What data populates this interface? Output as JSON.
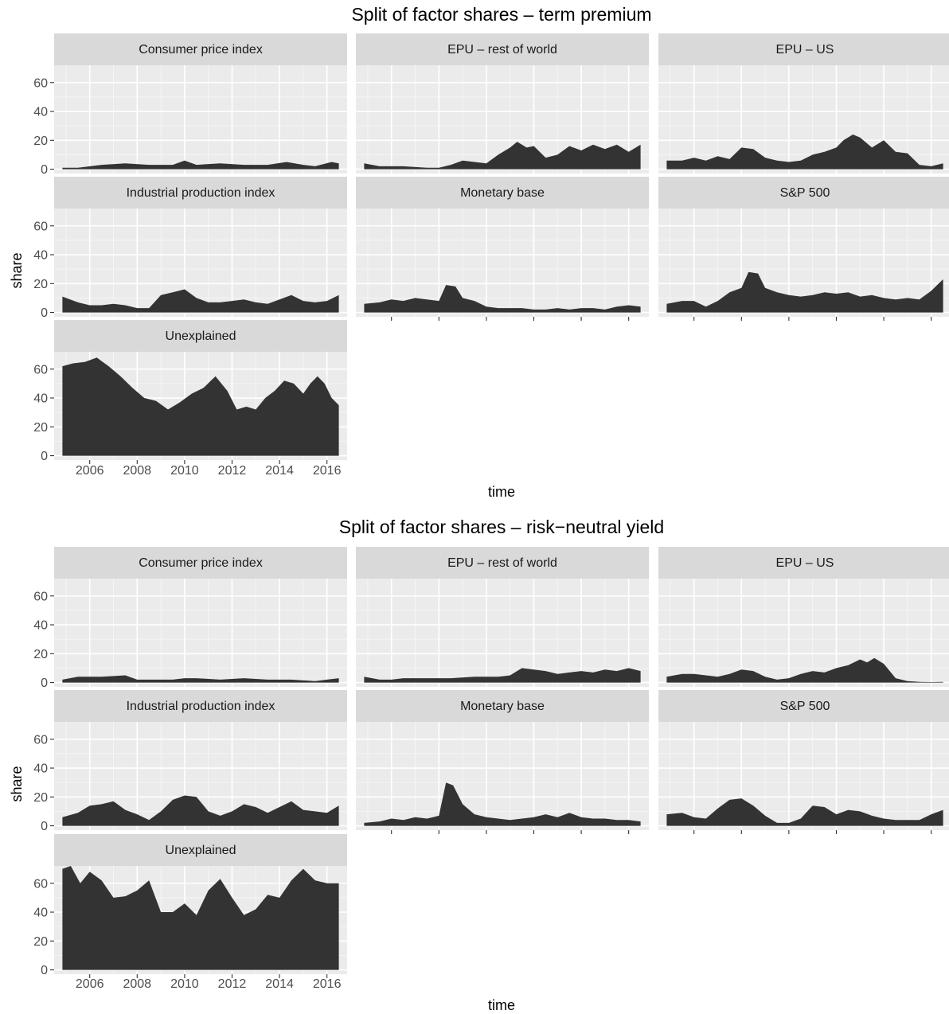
{
  "chart_data": [
    {
      "type": "area",
      "title": "Split of factor shares – term premium",
      "xlabel": "time",
      "ylabel": "share",
      "xlim": [
        2004.5,
        2016.85
      ],
      "ylim": [
        -3,
        72
      ],
      "x_ticks": [
        2006,
        2008,
        2010,
        2012,
        2014,
        2016
      ],
      "y_ticks": [
        0,
        20,
        40,
        60
      ],
      "panels": [
        {
          "name": "Consumer price index",
          "x": [
            2004.85,
            2005.5,
            2006.5,
            2007.5,
            2008.5,
            2009.5,
            2010.0,
            2010.5,
            2011.5,
            2012.5,
            2013.5,
            2014.3,
            2015.0,
            2015.5,
            2016.2,
            2016.5
          ],
          "values": [
            1,
            1,
            3,
            4,
            3,
            3,
            6,
            3,
            4,
            3,
            3,
            5,
            3,
            2,
            5,
            4
          ]
        },
        {
          "name": "EPU – rest of world",
          "x": [
            2004.85,
            2005.5,
            2006.5,
            2007.5,
            2008.0,
            2008.5,
            2009.0,
            2009.5,
            2010.0,
            2010.5,
            2011.0,
            2011.3,
            2011.7,
            2012.0,
            2012.5,
            2013.0,
            2013.5,
            2014.0,
            2014.5,
            2015.0,
            2015.5,
            2016.0,
            2016.5
          ],
          "values": [
            4,
            2,
            2,
            1,
            1,
            3,
            6,
            5,
            4,
            10,
            15,
            19,
            15,
            16,
            8,
            10,
            16,
            13,
            17,
            14,
            17,
            12,
            17
          ]
        },
        {
          "name": "EPU – US",
          "x": [
            2004.85,
            2005.5,
            2006.0,
            2006.5,
            2007.0,
            2007.5,
            2008.0,
            2008.5,
            2009.0,
            2009.5,
            2010.0,
            2010.5,
            2011.0,
            2011.5,
            2012.0,
            2012.3,
            2012.7,
            2013.0,
            2013.5,
            2014.0,
            2014.5,
            2015.0,
            2015.5,
            2016.0,
            2016.5
          ],
          "values": [
            6,
            6,
            8,
            6,
            9,
            7,
            15,
            14,
            8,
            6,
            5,
            6,
            10,
            12,
            15,
            20,
            24,
            22,
            15,
            20,
            12,
            11,
            3,
            2,
            4
          ]
        },
        {
          "name": "Industrial production index",
          "x": [
            2004.85,
            2005.5,
            2006.0,
            2006.5,
            2007.0,
            2007.5,
            2008.0,
            2008.5,
            2009.0,
            2009.5,
            2010.0,
            2010.5,
            2011.0,
            2011.5,
            2012.0,
            2012.5,
            2013.0,
            2013.5,
            2014.0,
            2014.5,
            2015.0,
            2015.5,
            2016.0,
            2016.5
          ],
          "values": [
            11,
            7,
            5,
            5,
            6,
            5,
            3,
            3,
            12,
            14,
            16,
            10,
            7,
            7,
            8,
            9,
            7,
            6,
            9,
            12,
            8,
            7,
            8,
            12
          ]
        },
        {
          "name": "Monetary base",
          "x": [
            2004.85,
            2005.5,
            2006.0,
            2006.5,
            2007.0,
            2007.5,
            2008.0,
            2008.3,
            2008.7,
            2009.0,
            2009.5,
            2010.0,
            2010.5,
            2011.0,
            2011.5,
            2012.0,
            2012.5,
            2013.0,
            2013.5,
            2014.0,
            2014.5,
            2015.0,
            2015.5,
            2016.0,
            2016.5
          ],
          "values": [
            6,
            7,
            9,
            8,
            10,
            9,
            8,
            19,
            18,
            10,
            8,
            4,
            3,
            3,
            3,
            2,
            2,
            3,
            2,
            3,
            3,
            2,
            4,
            5,
            4
          ]
        },
        {
          "name": "S&P 500",
          "x": [
            2004.85,
            2005.5,
            2006.0,
            2006.5,
            2007.0,
            2007.5,
            2008.0,
            2008.3,
            2008.7,
            2009.0,
            2009.5,
            2010.0,
            2010.5,
            2011.0,
            2011.5,
            2012.0,
            2012.5,
            2013.0,
            2013.5,
            2014.0,
            2014.5,
            2015.0,
            2015.5,
            2016.0,
            2016.5
          ],
          "values": [
            6,
            8,
            8,
            4,
            8,
            14,
            17,
            28,
            27,
            17,
            14,
            12,
            11,
            12,
            14,
            13,
            14,
            11,
            12,
            10,
            9,
            10,
            9,
            15,
            23
          ]
        },
        {
          "name": "Unexplained",
          "x": [
            2004.85,
            2005.3,
            2005.8,
            2006.3,
            2006.8,
            2007.3,
            2007.8,
            2008.3,
            2008.8,
            2009.3,
            2009.8,
            2010.3,
            2010.8,
            2011.3,
            2011.8,
            2012.2,
            2012.6,
            2013.0,
            2013.4,
            2013.8,
            2014.2,
            2014.6,
            2015.0,
            2015.3,
            2015.6,
            2015.9,
            2016.2,
            2016.5
          ],
          "values": [
            62,
            64,
            65,
            68,
            62,
            55,
            47,
            40,
            38,
            32,
            37,
            43,
            47,
            55,
            45,
            32,
            34,
            32,
            40,
            45,
            52,
            50,
            43,
            50,
            55,
            50,
            40,
            35
          ]
        }
      ]
    },
    {
      "type": "area",
      "title": "Split of factor shares – risk−neutral yield",
      "xlabel": "time",
      "ylabel": "share",
      "xlim": [
        2004.5,
        2016.85
      ],
      "ylim": [
        -3,
        72
      ],
      "x_ticks": [
        2006,
        2008,
        2010,
        2012,
        2014,
        2016
      ],
      "y_ticks": [
        0,
        20,
        40,
        60
      ],
      "panels": [
        {
          "name": "Consumer price index",
          "x": [
            2004.85,
            2005.5,
            2006.5,
            2007.5,
            2008.0,
            2008.5,
            2009.5,
            2010.0,
            2010.5,
            2011.5,
            2012.5,
            2013.5,
            2014.5,
            2015.5,
            2016.0,
            2016.5
          ],
          "values": [
            2,
            4,
            4,
            5,
            2,
            2,
            2,
            3,
            3,
            2,
            3,
            2,
            2,
            1,
            2,
            3
          ]
        },
        {
          "name": "EPU – rest of world",
          "x": [
            2004.85,
            2005.5,
            2006.0,
            2006.5,
            2007.5,
            2008.5,
            2009.5,
            2010.0,
            2010.5,
            2011.0,
            2011.5,
            2012.0,
            2012.5,
            2013.0,
            2013.5,
            2014.0,
            2014.5,
            2015.0,
            2015.5,
            2016.0,
            2016.5
          ],
          "values": [
            4,
            2,
            2,
            3,
            3,
            3,
            4,
            4,
            4,
            5,
            10,
            9,
            8,
            6,
            7,
            8,
            7,
            9,
            8,
            10,
            8
          ]
        },
        {
          "name": "EPU – US",
          "x": [
            2004.85,
            2005.5,
            2006.0,
            2006.5,
            2007.0,
            2007.5,
            2008.0,
            2008.5,
            2009.0,
            2009.5,
            2010.0,
            2010.5,
            2011.0,
            2011.5,
            2012.0,
            2012.5,
            2013.0,
            2013.3,
            2013.6,
            2014.0,
            2014.5,
            2015.0,
            2015.5,
            2016.0,
            2016.5
          ],
          "values": [
            4,
            6,
            6,
            5,
            4,
            6,
            9,
            8,
            4,
            2,
            3,
            6,
            8,
            7,
            10,
            12,
            16,
            14,
            17,
            13,
            3,
            1,
            0.5,
            0.3,
            0.5
          ]
        },
        {
          "name": "Industrial production index",
          "x": [
            2004.85,
            2005.5,
            2006.0,
            2006.5,
            2007.0,
            2007.5,
            2008.0,
            2008.5,
            2009.0,
            2009.5,
            2010.0,
            2010.5,
            2011.0,
            2011.5,
            2012.0,
            2012.5,
            2013.0,
            2013.5,
            2014.0,
            2014.5,
            2015.0,
            2015.5,
            2016.0,
            2016.5
          ],
          "values": [
            6,
            9,
            14,
            15,
            17,
            11,
            8,
            4,
            10,
            18,
            21,
            20,
            10,
            7,
            10,
            15,
            13,
            9,
            13,
            17,
            11,
            10,
            9,
            14
          ]
        },
        {
          "name": "Monetary base",
          "x": [
            2004.85,
            2005.5,
            2006.0,
            2006.5,
            2007.0,
            2007.5,
            2008.0,
            2008.3,
            2008.6,
            2009.0,
            2009.5,
            2010.0,
            2010.5,
            2011.0,
            2011.5,
            2012.0,
            2012.5,
            2013.0,
            2013.5,
            2014.0,
            2014.5,
            2015.0,
            2015.5,
            2016.0,
            2016.5
          ],
          "values": [
            2,
            3,
            5,
            4,
            6,
            5,
            7,
            30,
            28,
            15,
            8,
            6,
            5,
            4,
            5,
            6,
            8,
            6,
            9,
            6,
            5,
            5,
            4,
            4,
            3
          ]
        },
        {
          "name": "S&P 500",
          "x": [
            2004.85,
            2005.5,
            2006.0,
            2006.5,
            2007.0,
            2007.5,
            2008.0,
            2008.5,
            2009.0,
            2009.5,
            2010.0,
            2010.5,
            2011.0,
            2011.5,
            2012.0,
            2012.5,
            2013.0,
            2013.5,
            2014.0,
            2014.5,
            2015.0,
            2015.5,
            2016.0,
            2016.5
          ],
          "values": [
            8,
            9,
            6,
            5,
            12,
            18,
            19,
            14,
            7,
            2,
            2,
            5,
            14,
            13,
            8,
            11,
            10,
            7,
            5,
            4,
            4,
            4,
            8,
            11
          ]
        },
        {
          "name": "Unexplained",
          "x": [
            2004.85,
            2005.2,
            2005.6,
            2006.0,
            2006.5,
            2007.0,
            2007.5,
            2008.0,
            2008.5,
            2009.0,
            2009.5,
            2010.0,
            2010.5,
            2011.0,
            2011.5,
            2012.0,
            2012.5,
            2013.0,
            2013.5,
            2014.0,
            2014.5,
            2015.0,
            2015.5,
            2016.0,
            2016.5
          ],
          "values": [
            70,
            72,
            60,
            68,
            62,
            50,
            51,
            55,
            62,
            40,
            40,
            46,
            38,
            55,
            63,
            50,
            38,
            42,
            52,
            50,
            62,
            70,
            62,
            60,
            60
          ]
        }
      ]
    }
  ]
}
